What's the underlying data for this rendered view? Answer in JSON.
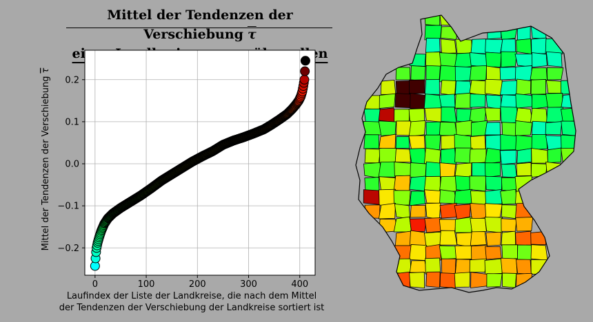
{
  "chart_data": {
    "type": "scatter",
    "title": {
      "line1": "Mittel der Tendenzen der Verschiebung",
      "line1_symbol": "τ",
      "line2": "eines Landkreises gegenüber allen anderen"
    },
    "xlabel": {
      "line1": "Laufindex der Liste der Landkreise, die nach dem Mittel",
      "line2": "der Tendenzen der Verschiebung der Landkreise sortiert ist"
    },
    "ylabel": "Mittel der Tendenzen der Verschiebung",
    "ylabel_symbol": "τ",
    "xlim": [
      -20,
      430
    ],
    "ylim": [
      -0.265,
      0.27
    ],
    "xticks": [
      0,
      100,
      200,
      300,
      400
    ],
    "xtick_labels": [
      "0",
      "100",
      "200",
      "300",
      "400"
    ],
    "yticks": [
      -0.2,
      -0.1,
      0.0,
      0.1,
      0.2
    ],
    "ytick_labels": [
      "−0.2",
      "−0.1",
      "0.0",
      "0.1",
      "0.2"
    ],
    "grid": true,
    "colormap": "hsv-cyan-green-yellow-red-black",
    "series": [
      {
        "x": [
          0,
          1,
          2,
          3,
          5,
          8,
          12,
          18,
          25,
          35,
          50,
          70,
          90,
          110,
          130,
          150,
          170,
          190,
          210,
          230,
          250,
          270,
          290,
          310,
          330,
          345,
          360,
          375,
          385,
          392,
          398,
          402,
          405,
          407,
          409,
          410,
          411
        ],
        "y": [
          -0.243,
          -0.225,
          -0.21,
          -0.2,
          -0.188,
          -0.175,
          -0.16,
          -0.143,
          -0.13,
          -0.118,
          -0.105,
          -0.09,
          -0.075,
          -0.058,
          -0.04,
          -0.025,
          -0.01,
          0.005,
          0.018,
          0.03,
          0.045,
          0.055,
          0.063,
          0.072,
          0.082,
          0.093,
          0.105,
          0.118,
          0.13,
          0.14,
          0.15,
          0.16,
          0.172,
          0.185,
          0.2,
          0.22,
          0.245
        ]
      }
    ],
    "map_region": "Deutschland, Landkreise"
  }
}
